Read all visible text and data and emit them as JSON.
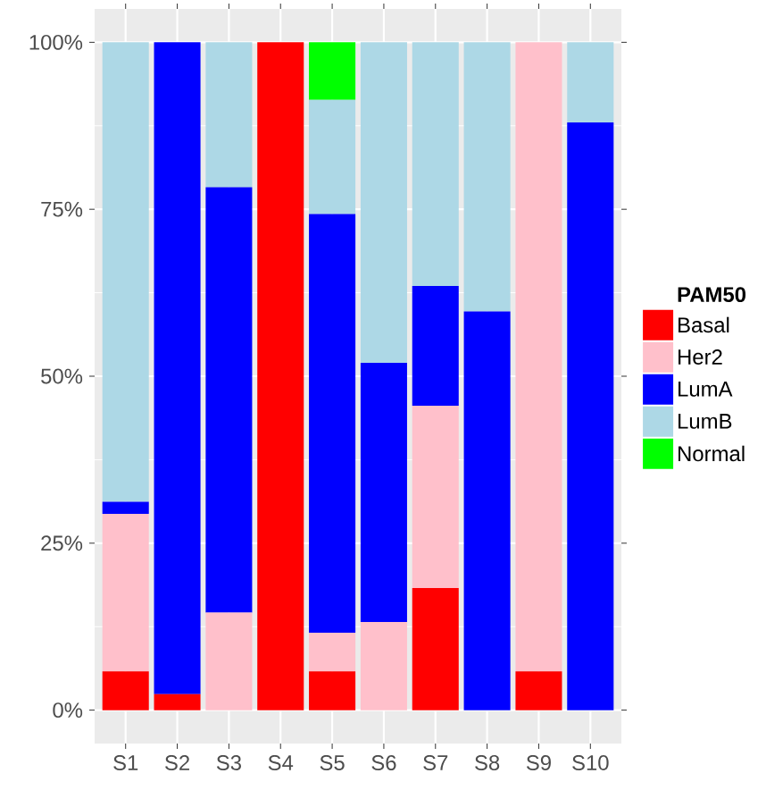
{
  "chart_data": {
    "type": "bar",
    "stacked": true,
    "legend_title": "PAM50",
    "legend": "right",
    "grid": true,
    "categories": [
      "S1",
      "S2",
      "S3",
      "S4",
      "S5",
      "S6",
      "S7",
      "S8",
      "S9",
      "S10"
    ],
    "ylim": [
      -5,
      105
    ],
    "yticks": [
      {
        "value": 0,
        "label": "0%"
      },
      {
        "value": 25,
        "label": "25%"
      },
      {
        "value": 50,
        "label": "50%"
      },
      {
        "value": 75,
        "label": "75%"
      },
      {
        "value": 100,
        "label": "100%"
      }
    ],
    "series": [
      {
        "name": "Basal",
        "color": "#ff0000",
        "values": [
          5.8,
          2.4,
          null,
          100,
          5.8,
          null,
          18.3,
          null,
          5.8,
          null
        ]
      },
      {
        "name": "Her2",
        "color": "#ffc0cb",
        "values": [
          23.6,
          null,
          14.6,
          null,
          5.8,
          13.2,
          27.3,
          null,
          94.2,
          null
        ]
      },
      {
        "name": "LumA",
        "color": "#0000ff",
        "values": [
          1.8,
          97.6,
          63.7,
          null,
          62.7,
          38.8,
          17.9,
          59.7,
          null,
          88.0
        ]
      },
      {
        "name": "LumB",
        "color": "#add8e6",
        "values": [
          68.8,
          null,
          21.7,
          null,
          17.1,
          48.0,
          36.5,
          40.3,
          null,
          12.0
        ]
      },
      {
        "name": "Normal",
        "color": "#00ff00",
        "values": [
          null,
          null,
          null,
          null,
          8.6,
          null,
          null,
          null,
          null,
          null
        ]
      }
    ]
  }
}
